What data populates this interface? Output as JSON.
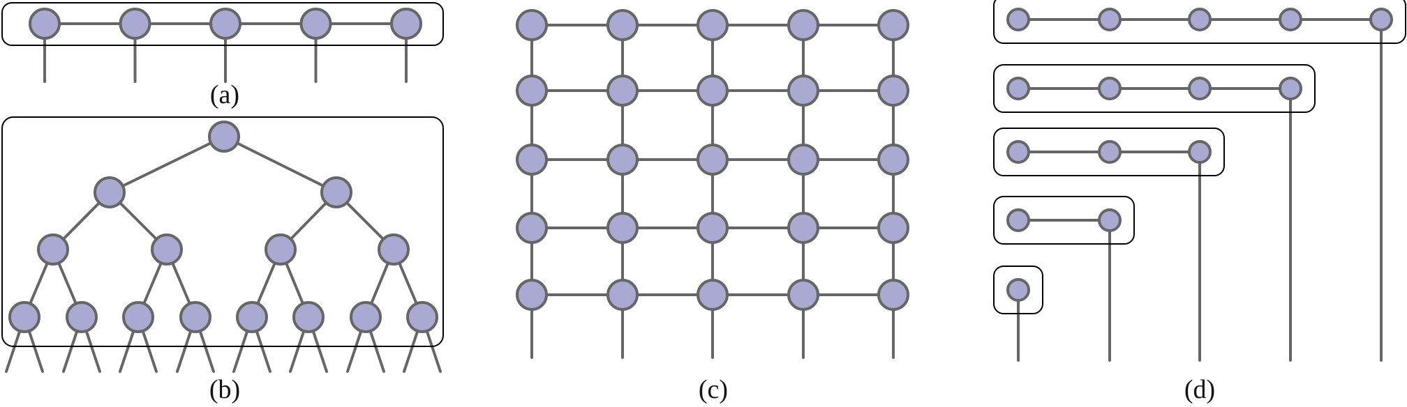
{
  "figure": {
    "colors": {
      "node_fill": "#aaa9d1",
      "node_stroke": "#666666",
      "edge": "#666666",
      "frame": "#000000",
      "background": "#ffffff"
    },
    "panels": [
      {
        "id": "a",
        "caption": "(a)",
        "structure": "chain",
        "node_count": 5
      },
      {
        "id": "b",
        "caption": "(b)",
        "structure": "binary-tree",
        "levels": 4,
        "node_count": 15,
        "open_leaf_edges": 16
      },
      {
        "id": "c",
        "caption": "(c)",
        "structure": "grid",
        "rows": 5,
        "columns": 5
      },
      {
        "id": "d",
        "caption": "(d)",
        "structure": "staircase-chains",
        "row_lengths": [
          5,
          4,
          3,
          2,
          1
        ]
      }
    ]
  }
}
